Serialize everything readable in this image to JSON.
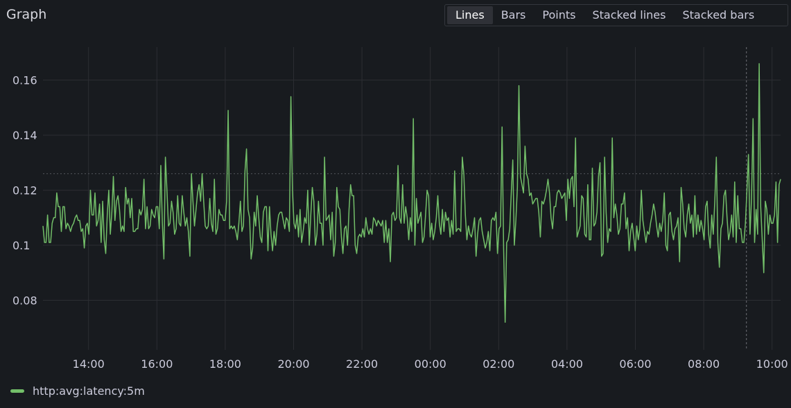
{
  "panel": {
    "title": "Graph"
  },
  "display_modes": [
    {
      "label": "Lines",
      "active": true
    },
    {
      "label": "Bars",
      "active": false
    },
    {
      "label": "Points",
      "active": false
    },
    {
      "label": "Stacked lines",
      "active": false
    },
    {
      "label": "Stacked bars",
      "active": false
    }
  ],
  "colors": {
    "background": "#181b1f",
    "series": "#73bf69",
    "grid": "#2c2e33",
    "text": "#ccccdc"
  },
  "chart_data": {
    "type": "line",
    "title": "Graph",
    "xlabel": "",
    "ylabel": "",
    "x_range": [
      "12:40",
      "10:15"
    ],
    "ylim": [
      0.062,
      0.172
    ],
    "x_ticks": [
      "14:00",
      "16:00",
      "18:00",
      "20:00",
      "22:00",
      "00:00",
      "02:00",
      "04:00",
      "06:00",
      "08:00",
      "10:00"
    ],
    "y_ticks": [
      "0.08",
      "0.1",
      "0.12",
      "0.14",
      "0.16"
    ],
    "reference_line_y": 0.126,
    "cursor_x": "09:15",
    "grid": true,
    "legend_placement": "bottom-left",
    "series": [
      {
        "name": "http:avg:latency:5m",
        "color": "#73bf69",
        "x_start": "12:40",
        "x_end": "10:15",
        "values": [
          0.107,
          0.101,
          0.101,
          0.111,
          0.101,
          0.101,
          0.108,
          0.11,
          0.11,
          0.119,
          0.114,
          0.114,
          0.105,
          0.114,
          0.114,
          0.106,
          0.108,
          0.107,
          0.105,
          0.107,
          0.108,
          0.11,
          0.111,
          0.109,
          0.109,
          0.105,
          0.106,
          0.099,
          0.107,
          0.108,
          0.104,
          0.12,
          0.111,
          0.111,
          0.119,
          0.107,
          0.109,
          0.115,
          0.101,
          0.116,
          0.102,
          0.097,
          0.111,
          0.12,
          0.104,
          0.112,
          0.125,
          0.109,
          0.116,
          0.118,
          0.113,
          0.105,
          0.107,
          0.105,
          0.121,
          0.115,
          0.117,
          0.11,
          0.117,
          0.105,
          0.105,
          0.106,
          0.106,
          0.113,
          0.111,
          0.113,
          0.124,
          0.106,
          0.114,
          0.106,
          0.107,
          0.113,
          0.111,
          0.11,
          0.114,
          0.114,
          0.106,
          0.129,
          0.108,
          0.095,
          0.132,
          0.12,
          0.107,
          0.108,
          0.116,
          0.112,
          0.104,
          0.106,
          0.118,
          0.108,
          0.107,
          0.118,
          0.112,
          0.107,
          0.11,
          0.105,
          0.096,
          0.126,
          0.116,
          0.107,
          0.113,
          0.119,
          0.122,
          0.116,
          0.126,
          0.116,
          0.107,
          0.106,
          0.107,
          0.117,
          0.108,
          0.105,
          0.124,
          0.104,
          0.106,
          0.113,
          0.111,
          0.111,
          0.109,
          0.109,
          0.116,
          0.149,
          0.106,
          0.107,
          0.106,
          0.107,
          0.105,
          0.102,
          0.108,
          0.116,
          0.105,
          0.107,
          0.127,
          0.135,
          0.113,
          0.11,
          0.095,
          0.099,
          0.112,
          0.107,
          0.118,
          0.11,
          0.103,
          0.101,
          0.112,
          0.114,
          0.114,
          0.098,
          0.114,
          0.104,
          0.098,
          0.105,
          0.1,
          0.107,
          0.111,
          0.112,
          0.112,
          0.109,
          0.106,
          0.11,
          0.109,
          0.105,
          0.154,
          0.12,
          0.108,
          0.106,
          0.111,
          0.103,
          0.113,
          0.101,
          0.105,
          0.11,
          0.108,
          0.12,
          0.1,
          0.111,
          0.121,
          0.116,
          0.1,
          0.104,
          0.116,
          0.108,
          0.108,
          0.1,
          0.132,
          0.109,
          0.11,
          0.111,
          0.102,
          0.112,
          0.096,
          0.101,
          0.121,
          0.114,
          0.113,
          0.103,
          0.097,
          0.106,
          0.107,
          0.1,
          0.113,
          0.122,
          0.118,
          0.118,
          0.1,
          0.097,
          0.103,
          0.104,
          0.103,
          0.106,
          0.103,
          0.11,
          0.106,
          0.104,
          0.106,
          0.104,
          0.11,
          0.109,
          0.107,
          0.109,
          0.108,
          0.107,
          0.109,
          0.101,
          0.109,
          0.101,
          0.106,
          0.094,
          0.111,
          0.112,
          0.109,
          0.11,
          0.129,
          0.11,
          0.108,
          0.122,
          0.108,
          0.114,
          0.11,
          0.102,
          0.11,
          0.105,
          0.146,
          0.1,
          0.117,
          0.108,
          0.11,
          0.112,
          0.101,
          0.103,
          0.111,
          0.12,
          0.118,
          0.103,
          0.108,
          0.102,
          0.105,
          0.11,
          0.118,
          0.108,
          0.104,
          0.113,
          0.105,
          0.112,
          0.109,
          0.11,
          0.103,
          0.109,
          0.104,
          0.127,
          0.105,
          0.106,
          0.106,
          0.105,
          0.132,
          0.126,
          0.111,
          0.102,
          0.107,
          0.104,
          0.103,
          0.106,
          0.11,
          0.096,
          0.104,
          0.109,
          0.11,
          0.105,
          0.102,
          0.099,
          0.101,
          0.105,
          0.098,
          0.109,
          0.11,
          0.109,
          0.112,
          0.097,
          0.106,
          0.107,
          0.143,
          0.099,
          0.072,
          0.101,
          0.102,
          0.106,
          0.119,
          0.131,
          0.1,
          0.109,
          0.121,
          0.158,
          0.125,
          0.122,
          0.119,
          0.136,
          0.126,
          0.124,
          0.118,
          0.119,
          0.115,
          0.116,
          0.117,
          0.117,
          0.112,
          0.103,
          0.116,
          0.115,
          0.117,
          0.12,
          0.124,
          0.119,
          0.11,
          0.106,
          0.114,
          0.114,
          0.119,
          0.12,
          0.119,
          0.117,
          0.118,
          0.119,
          0.109,
          0.124,
          0.117,
          0.124,
          0.125,
          0.114,
          0.139,
          0.103,
          0.105,
          0.107,
          0.118,
          0.117,
          0.104,
          0.103,
          0.122,
          0.102,
          0.102,
          0.128,
          0.107,
          0.108,
          0.112,
          0.125,
          0.13,
          0.096,
          0.097,
          0.132,
          0.112,
          0.101,
          0.106,
          0.105,
          0.139,
          0.11,
          0.115,
          0.111,
          0.104,
          0.106,
          0.115,
          0.115,
          0.119,
          0.106,
          0.11,
          0.098,
          0.105,
          0.108,
          0.103,
          0.098,
          0.107,
          0.102,
          0.106,
          0.12,
          0.109,
          0.105,
          0.101,
          0.105,
          0.104,
          0.108,
          0.111,
          0.115,
          0.112,
          0.107,
          0.103,
          0.108,
          0.105,
          0.109,
          0.119,
          0.1,
          0.098,
          0.111,
          0.112,
          0.105,
          0.102,
          0.106,
          0.107,
          0.11,
          0.094,
          0.121,
          0.115,
          0.106,
          0.103,
          0.111,
          0.115,
          0.108,
          0.111,
          0.103,
          0.118,
          0.104,
          0.111,
          0.105,
          0.109,
          0.106,
          0.102,
          0.114,
          0.116,
          0.104,
          0.099,
          0.111,
          0.104,
          0.116,
          0.132,
          0.101,
          0.092,
          0.106,
          0.108,
          0.118,
          0.12,
          0.11,
          0.102,
          0.105,
          0.111,
          0.103,
          0.123,
          0.101,
          0.118,
          0.106,
          0.106,
          0.101,
          0.101,
          0.108,
          0.12,
          0.133,
          0.104,
          0.117,
          0.146,
          0.101,
          0.113,
          0.104,
          0.166,
          0.114,
          0.102,
          0.09,
          0.116,
          0.113,
          0.104,
          0.111,
          0.108,
          0.108,
          0.111,
          0.123,
          0.101,
          0.122,
          0.124
        ]
      }
    ]
  }
}
